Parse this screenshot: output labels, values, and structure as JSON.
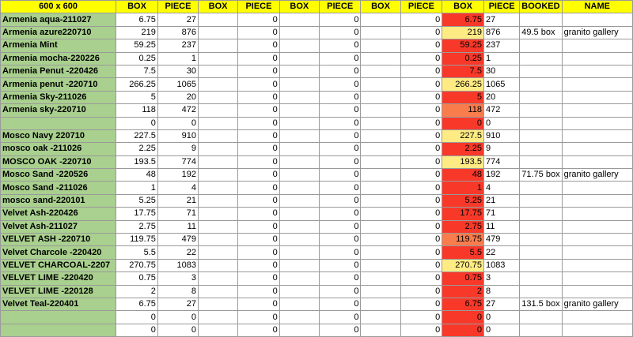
{
  "colors": {
    "header_bg": "#ffff00",
    "name_bg": "#a9d08e",
    "box_red": "#f8392a",
    "box_light": "#ffeb84",
    "box_orange": "#f97c4d"
  },
  "headers": [
    "600 x 600",
    "BOX",
    "PIECE",
    "BOX",
    "PIECE",
    "BOX",
    "PIECE",
    "BOX",
    "PIECE",
    "BOX",
    "PIECE",
    "BOOKED",
    "NAME"
  ],
  "rows": [
    {
      "name": "Armenia aqua-211027",
      "box": "6.75",
      "piece": "27",
      "c4": "0",
      "c6": "0",
      "c8": "0",
      "box2": "6.75",
      "piece2": "27",
      "booked": "",
      "gname": "",
      "tone": "red"
    },
    {
      "name": "Armenia azure220710",
      "box": "219",
      "piece": "876",
      "c4": "0",
      "c6": "0",
      "c8": "0",
      "box2": "219",
      "piece2": "876",
      "booked": "49.5 box",
      "gname": "granito gallery",
      "tone": "light"
    },
    {
      "name": "Armenia Mint",
      "box": "59.25",
      "piece": "237",
      "c4": "0",
      "c6": "0",
      "c8": "0",
      "box2": "59.25",
      "piece2": "237",
      "booked": "",
      "gname": "",
      "tone": "red"
    },
    {
      "name": "Armenia mocha-220226",
      "box": "0.25",
      "piece": "1",
      "c4": "0",
      "c6": "0",
      "c8": "0",
      "box2": "0.25",
      "piece2": "1",
      "booked": "",
      "gname": "",
      "tone": "red"
    },
    {
      "name": "Armenia Penut  -220426",
      "box": "7.5",
      "piece": "30",
      "c4": "0",
      "c6": "0",
      "c8": "0",
      "box2": "7.5",
      "piece2": "30",
      "booked": "",
      "gname": "",
      "tone": "red"
    },
    {
      "name": "Armenia penut  -220710",
      "box": "266.25",
      "piece": "1065",
      "c4": "0",
      "c6": "0",
      "c8": "0",
      "box2": "266.25",
      "piece2": "1065",
      "booked": "",
      "gname": "",
      "tone": "light"
    },
    {
      "name": "Armenia Sky-211026",
      "box": "5",
      "piece": "20",
      "c4": "0",
      "c6": "0",
      "c8": "0",
      "box2": "5",
      "piece2": "20",
      "booked": "",
      "gname": "",
      "tone": "red"
    },
    {
      "name": "Armenia sky-220710",
      "box": "118",
      "piece": "472",
      "c4": "0",
      "c6": "0",
      "c8": "0",
      "box2": "118",
      "piece2": "472",
      "booked": "",
      "gname": "",
      "tone": "orange"
    },
    {
      "name": "",
      "box": "0",
      "piece": "0",
      "c4": "0",
      "c6": "0",
      "c8": "0",
      "box2": "0",
      "piece2": "0",
      "booked": "",
      "gname": "",
      "tone": "red"
    },
    {
      "name": "Mosco Navy  220710",
      "box": "227.5",
      "piece": "910",
      "c4": "0",
      "c6": "0",
      "c8": "0",
      "box2": "227.5",
      "piece2": "910",
      "booked": "",
      "gname": "",
      "tone": "light"
    },
    {
      "name": "mosco oak -211026",
      "box": "2.25",
      "piece": "9",
      "c4": "0",
      "c6": "0",
      "c8": "0",
      "box2": "2.25",
      "piece2": "9",
      "booked": "",
      "gname": "",
      "tone": "red"
    },
    {
      "name": "MOSCO OAK -220710",
      "box": "193.5",
      "piece": "774",
      "c4": "0",
      "c6": "0",
      "c8": "0",
      "box2": "193.5",
      "piece2": "774",
      "booked": "",
      "gname": "",
      "tone": "light"
    },
    {
      "name": "Mosco Sand -220526",
      "box": "48",
      "piece": "192",
      "c4": "0",
      "c6": "0",
      "c8": "0",
      "box2": "48",
      "piece2": "192",
      "booked": "71.75 box",
      "gname": "granito gallery",
      "tone": "red"
    },
    {
      "name": "Mosco Sand -211026",
      "box": "1",
      "piece": "4",
      "c4": "0",
      "c6": "0",
      "c8": "0",
      "box2": "1",
      "piece2": "4",
      "booked": "",
      "gname": "",
      "tone": "red"
    },
    {
      "name": "mosco sand-220101",
      "box": "5.25",
      "piece": "21",
      "c4": "0",
      "c6": "0",
      "c8": "0",
      "box2": "5.25",
      "piece2": "21",
      "booked": "",
      "gname": "",
      "tone": "red"
    },
    {
      "name": "Velvet Ash-220426",
      "box": "17.75",
      "piece": "71",
      "c4": "0",
      "c6": "0",
      "c8": "0",
      "box2": "17.75",
      "piece2": "71",
      "booked": "",
      "gname": "",
      "tone": "red"
    },
    {
      "name": "Velvet Ash-211027",
      "box": "2.75",
      "piece": "11",
      "c4": "0",
      "c6": "0",
      "c8": "0",
      "box2": "2.75",
      "piece2": "11",
      "booked": "",
      "gname": "",
      "tone": "red"
    },
    {
      "name": "VELVET ASH -220710",
      "box": "119.75",
      "piece": "479",
      "c4": "0",
      "c6": "0",
      "c8": "0",
      "box2": "119.75",
      "piece2": "479",
      "booked": "",
      "gname": "",
      "tone": "orange"
    },
    {
      "name": "Velvet Charcole -220420",
      "box": "5.5",
      "piece": "22",
      "c4": "0",
      "c6": "0",
      "c8": "0",
      "box2": "5.5",
      "piece2": "22",
      "booked": "",
      "gname": "",
      "tone": "red"
    },
    {
      "name": "VELVET CHARCOAL-2207",
      "box": "270.75",
      "piece": "1083",
      "c4": "0",
      "c6": "0",
      "c8": "0",
      "box2": "270.75",
      "piece2": "1083",
      "booked": "",
      "gname": "",
      "tone": "light"
    },
    {
      "name": "VELVET LIME -220420",
      "box": "0.75",
      "piece": "3",
      "c4": "0",
      "c6": "0",
      "c8": "0",
      "box2": "0.75",
      "piece2": "3",
      "booked": "",
      "gname": "",
      "tone": "red"
    },
    {
      "name": "VELVET LIME -220128",
      "box": "2",
      "piece": "8",
      "c4": "0",
      "c6": "0",
      "c8": "0",
      "box2": "2",
      "piece2": "8",
      "booked": "",
      "gname": "",
      "tone": "red"
    },
    {
      "name": "Velvet Teal-220401",
      "box": "6.75",
      "piece": "27",
      "c4": "0",
      "c6": "0",
      "c8": "0",
      "box2": "6.75",
      "piece2": "27",
      "booked": "131.5 box",
      "gname": "granito gallery",
      "tone": "red"
    },
    {
      "name": "",
      "box": "0",
      "piece": "0",
      "c4": "0",
      "c6": "0",
      "c8": "0",
      "box2": "0",
      "piece2": "0",
      "booked": "",
      "gname": "",
      "tone": "red"
    },
    {
      "name": "",
      "box": "0",
      "piece": "0",
      "c4": "0",
      "c6": "0",
      "c8": "0",
      "box2": "0",
      "piece2": "0",
      "booked": "",
      "gname": "",
      "tone": "red"
    }
  ]
}
